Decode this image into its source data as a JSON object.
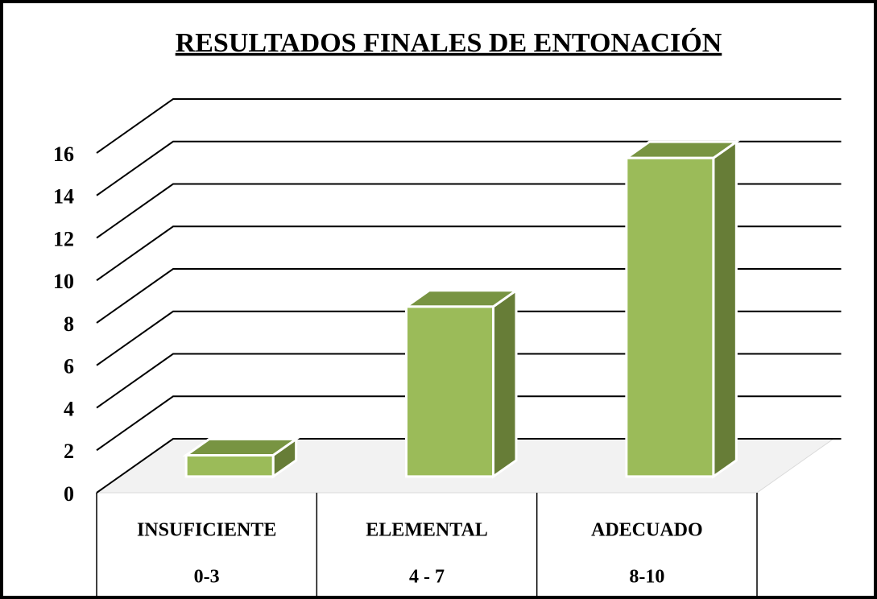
{
  "chart_data": {
    "type": "bar3d",
    "title": "RESULTADOS FINALES DE ENTONACIÓN",
    "categories": [
      [
        "INSUFICIENTE",
        "0-3"
      ],
      [
        "ELEMENTAL",
        "4 - 7"
      ],
      [
        "ADECUADO",
        "8-10"
      ]
    ],
    "values": [
      1,
      8,
      15
    ],
    "color": "#9bbb59",
    "ylim": [
      0,
      16
    ],
    "yticks": [
      0,
      2,
      4,
      6,
      8,
      10,
      12,
      14,
      16
    ],
    "grid": true
  }
}
